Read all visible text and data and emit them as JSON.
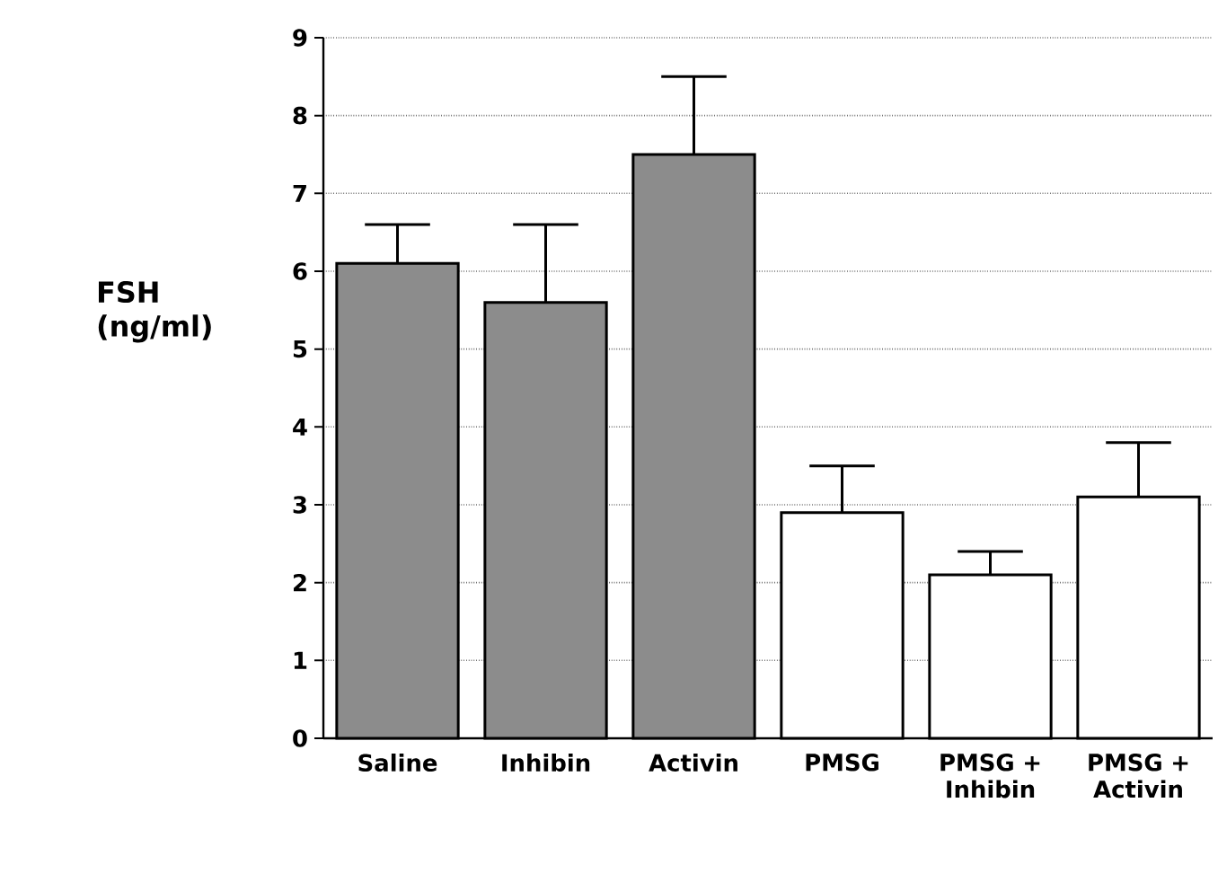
{
  "chart_data": {
    "type": "bar",
    "ylabel": "FSH (ng/ml)",
    "categories": [
      "Saline",
      "Inhibin",
      "Activin",
      "PMSG",
      "PMSG + Inhibin",
      "PMSG + Activin"
    ],
    "values": [
      6.1,
      5.6,
      7.5,
      2.9,
      2.1,
      3.1
    ],
    "errors": [
      [
        6.1,
        6.6
      ],
      [
        5.6,
        6.6
      ],
      [
        7.5,
        8.5
      ],
      [
        2.9,
        3.5
      ],
      [
        2.1,
        2.4
      ],
      [
        3.1,
        3.8
      ]
    ],
    "colors": [
      "#8c8c8c",
      "#8c8c8c",
      "#8c8c8c",
      "#ffffff",
      "#ffffff",
      "#ffffff"
    ],
    "ylim": [
      0,
      9
    ],
    "yticks": [
      0,
      1,
      2,
      3,
      4,
      5,
      6,
      7,
      8,
      9
    ],
    "grid": "y"
  }
}
